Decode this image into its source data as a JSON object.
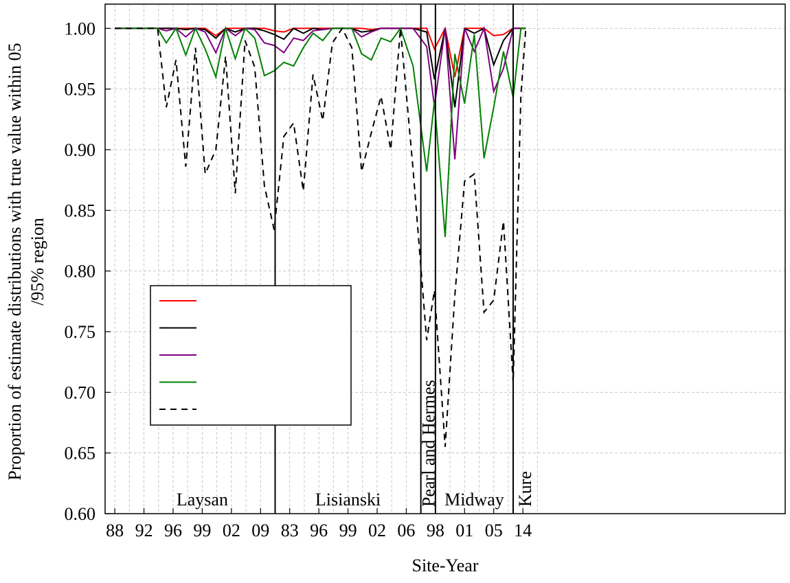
{
  "chart_data": {
    "type": "line",
    "xlabel": "Site-Year",
    "ylabel_lines": [
      "Proportion of estimate distributions with true value within 05",
      "/95% region"
    ],
    "ylim": [
      0.6,
      1.02
    ],
    "yticks": [
      "0.60",
      "0.65",
      "0.70",
      "0.75",
      "0.80",
      "0.85",
      "0.90",
      "0.95",
      "1.00"
    ],
    "xlim": [
      -1,
      69
    ],
    "xticks": [
      {
        "x": 0,
        "label": "88"
      },
      {
        "x": 3,
        "label": "92"
      },
      {
        "x": 6,
        "label": "96"
      },
      {
        "x": 9,
        "label": "99"
      },
      {
        "x": 12,
        "label": "02"
      },
      {
        "x": 15,
        "label": "09"
      },
      {
        "x": 18,
        "label": "83"
      },
      {
        "x": 21,
        "label": "96"
      },
      {
        "x": 24,
        "label": "99"
      },
      {
        "x": 27,
        "label": "02"
      },
      {
        "x": 30,
        "label": "06"
      },
      {
        "x": 33,
        "label": "98"
      },
      {
        "x": 36,
        "label": "01"
      },
      {
        "x": 39,
        "label": "05"
      },
      {
        "x": 42,
        "label": "14"
      }
    ],
    "grid": true,
    "dividers": [
      16.5,
      31.5,
      33,
      41
    ],
    "regions": [
      {
        "label": "Laysan",
        "x": 9,
        "rotated": false
      },
      {
        "label": "Lisianski",
        "x": 24,
        "rotated": false
      },
      {
        "label": "Pearl and Hermes",
        "x": 32.25,
        "rotated": true
      },
      {
        "label": "Midway",
        "x": 37,
        "rotated": false
      },
      {
        "label": "Kure",
        "x": 42.2,
        "rotated": true
      }
    ],
    "legend": {
      "placement": "lower-left",
      "labels_visible": false
    },
    "series": [
      {
        "color": "#ff0000",
        "dash": false,
        "values": [
          1.0,
          1.0,
          1.0,
          1.0,
          1.0,
          1.0,
          1.0,
          1.0,
          1.0,
          1.0,
          1.0,
          0.994,
          1.0,
          1.0,
          1.0,
          1.0,
          1.0,
          0.998,
          0.997,
          1.0,
          1.0,
          1.0,
          1.0,
          1.0,
          1.0,
          1.0,
          1.0,
          0.999,
          1.0,
          1.0,
          1.0,
          1.0,
          1.0,
          0.983,
          1.0,
          0.96,
          1.0,
          1.0,
          1.0,
          0.994,
          0.995,
          1.0,
          1.0,
          1.0
        ]
      },
      {
        "color": "#000000",
        "dash": false,
        "values": [
          1.0,
          1.0,
          1.0,
          1.0,
          1.0,
          1.0,
          1.0,
          1.0,
          0.999,
          1.0,
          0.999,
          0.992,
          1.0,
          0.997,
          1.0,
          1.0,
          0.998,
          0.995,
          0.991,
          1.0,
          0.996,
          1.0,
          0.999,
          1.0,
          1.0,
          1.0,
          0.997,
          0.998,
          1.0,
          1.0,
          1.0,
          1.0,
          0.997,
          0.958,
          1.0,
          0.935,
          1.0,
          0.996,
          1.0,
          0.97,
          0.99,
          1.0,
          1.0,
          1.0
        ]
      },
      {
        "color": "#800080",
        "dash": false,
        "values": [
          1.0,
          1.0,
          1.0,
          1.0,
          1.0,
          1.0,
          0.998,
          1.0,
          0.993,
          1.0,
          0.997,
          0.98,
          1.0,
          0.994,
          1.0,
          0.999,
          0.988,
          0.986,
          0.98,
          0.992,
          0.99,
          0.998,
          0.999,
          1.0,
          1.0,
          1.0,
          0.993,
          0.997,
          1.0,
          1.0,
          1.0,
          1.0,
          0.985,
          0.936,
          1.0,
          0.892,
          1.0,
          0.981,
          1.0,
          0.948,
          0.967,
          1.0,
          1.0,
          1.0
        ]
      },
      {
        "color": "#008000",
        "dash": false,
        "values": [
          1.0,
          1.0,
          1.0,
          1.0,
          1.0,
          1.0,
          0.988,
          1.0,
          0.978,
          1.0,
          0.983,
          0.96,
          1.0,
          0.975,
          1.0,
          0.992,
          0.961,
          0.965,
          0.972,
          0.969,
          0.984,
          0.996,
          0.99,
          1.0,
          1.0,
          1.0,
          0.979,
          0.974,
          0.992,
          0.989,
          1.0,
          0.969,
          0.882,
          0.94,
          0.828,
          0.979,
          0.938,
          0.995,
          0.893,
          0.935,
          0.981,
          0.943,
          1.0,
          1.0
        ]
      },
      {
        "color": "#000000",
        "dash": true,
        "values": [
          1.0,
          1.0,
          1.0,
          1.0,
          1.0,
          1.0,
          0.935,
          0.974,
          0.886,
          0.984,
          0.88,
          0.9,
          0.977,
          0.864,
          0.99,
          0.968,
          0.87,
          0.834,
          0.911,
          0.922,
          0.866,
          0.962,
          0.924,
          0.988,
          1.0,
          0.984,
          0.882,
          0.914,
          0.944,
          0.9,
          1.0,
          0.884,
          0.743,
          0.784,
          0.655,
          0.78,
          0.874,
          0.88,
          0.766,
          0.776,
          0.841,
          0.708,
          0.945,
          1.0
        ]
      }
    ],
    "series_x": [
      0,
      0.9,
      1.8,
      2.7,
      3.6,
      4.4,
      5.3,
      6.3,
      7.3,
      8.3,
      9.3,
      10.4,
      11.4,
      12.4,
      13.4,
      14.4,
      15.4,
      16.4,
      17.4,
      18.4,
      19.4,
      20.4,
      21.4,
      22.4,
      23.4,
      24.4,
      25.4,
      26.4,
      27.4,
      28.4,
      29.4,
      30.7,
      32.1,
      32.9,
      34.0,
      35.0,
      36.0,
      37.0,
      38.0,
      39.0,
      40.0,
      41.0,
      41.8,
      42.3
    ]
  }
}
